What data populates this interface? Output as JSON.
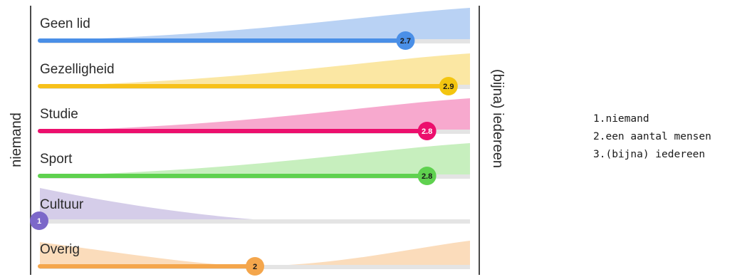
{
  "chart_data": {
    "type": "bar",
    "scale": [
      1,
      3
    ],
    "left_label": "niemand",
    "right_label": "(bijna) iedereen",
    "categories": [
      "Geen lid",
      "Gezelligheid",
      "Studie",
      "Sport",
      "Cultuur",
      "Overig"
    ],
    "values": [
      2.7,
      2.9,
      2.8,
      2.8,
      1,
      2
    ],
    "value_labels": [
      "2.7",
      "2.9",
      "2.8",
      "2.8",
      "1",
      "2"
    ],
    "distribution_shape": [
      "rising",
      "rising",
      "rising",
      "rising",
      "falling",
      "u-shaped"
    ],
    "colors": {
      "line": [
        "#4a8fe7",
        "#f7c11a",
        "#ec0f6d",
        "#5fd14f",
        "#7c68c9",
        "#f4a64c"
      ],
      "fill": [
        "#b9d2f4",
        "#fbe7a3",
        "#f7a9ce",
        "#c7efbe",
        "#d5cde9",
        "#fbdcbb"
      ],
      "dot": [
        "#4a8fe7",
        "#f3c510",
        "#ec0f6d",
        "#5fd14f",
        "#7c68c9",
        "#f4a64c"
      ],
      "dot_text": [
        "#1a1a1a",
        "#1a1a1a",
        "#ffffff",
        "#1a1a1a",
        "#ffffff",
        "#1a1a1a"
      ],
      "track": "#e4e4e4",
      "axis": "#4a4a4a"
    }
  },
  "legend": [
    "1.niemand",
    "2.een aantal mensen",
    "3.(bijna) iedereen"
  ]
}
